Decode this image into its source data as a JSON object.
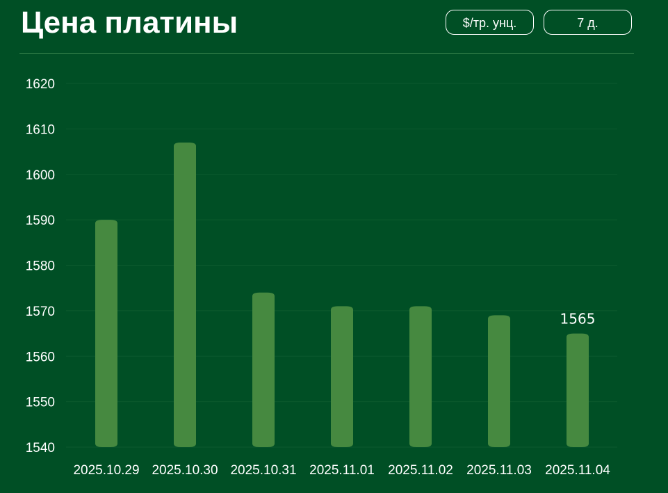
{
  "header": {
    "title": "Цена платины",
    "unit_button": "$/тр. унц.",
    "period_button": "7 д."
  },
  "colors": {
    "background": "#004f25",
    "bar": "#468940",
    "grid": "#0c5a2e"
  },
  "chart_data": {
    "type": "bar",
    "categories": [
      "2025.10.29",
      "2025.10.30",
      "2025.10.31",
      "2025.11.01",
      "2025.11.02",
      "2025.11.03",
      "2025.11.04"
    ],
    "values": [
      1590,
      1607,
      1574,
      1571,
      1571,
      1569,
      1565
    ],
    "ylim": [
      1540,
      1620
    ],
    "yticks": [
      1540,
      1550,
      1560,
      1570,
      1580,
      1590,
      1600,
      1610,
      1620
    ],
    "data_labels": [
      {
        "category": "2025.11.04",
        "text": "1565"
      }
    ],
    "grid": true,
    "legend": "none"
  }
}
